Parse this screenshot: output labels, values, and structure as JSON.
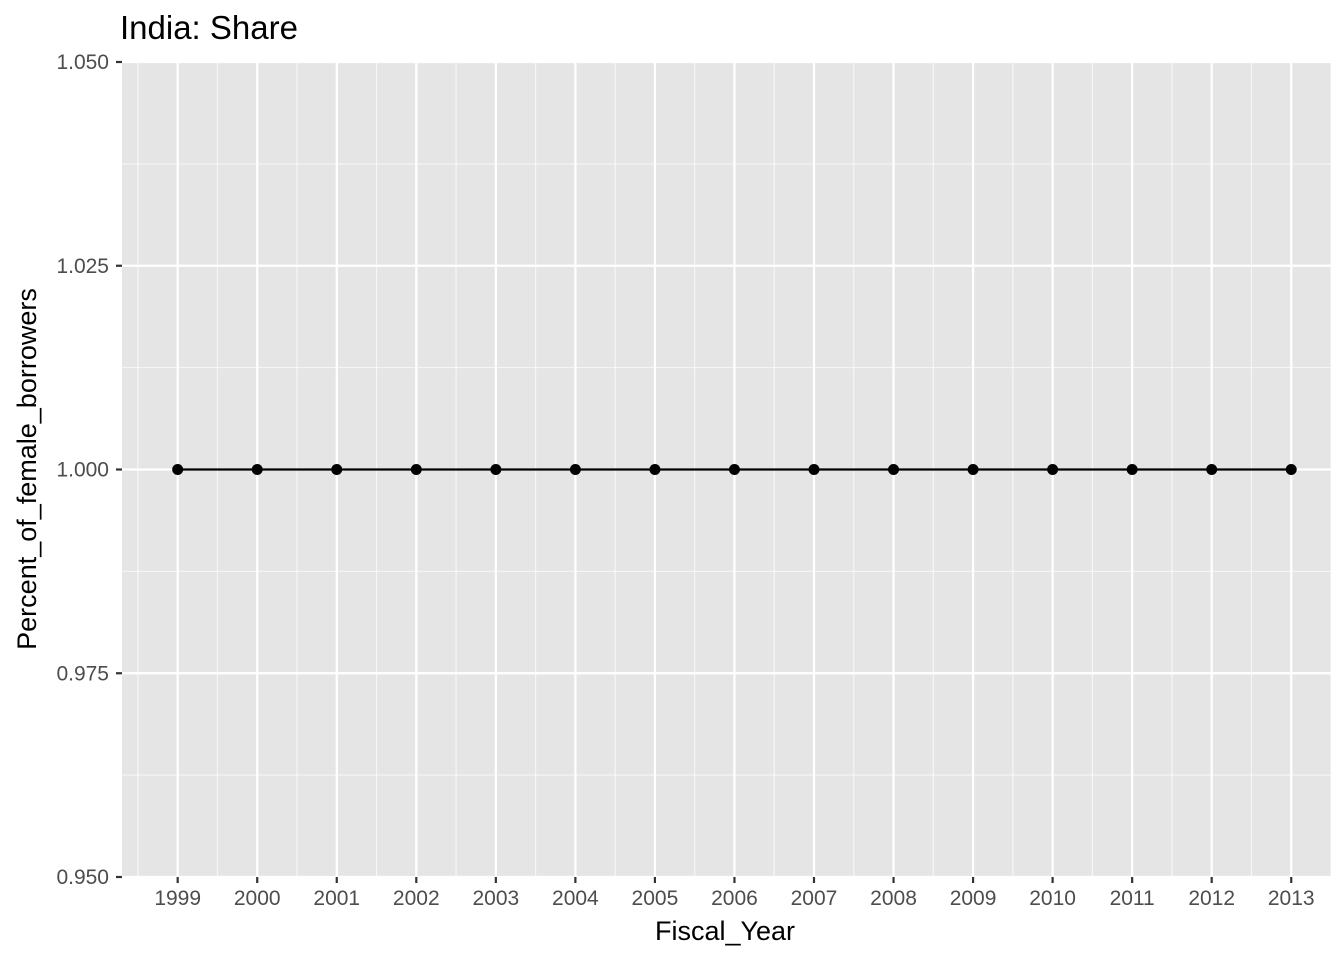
{
  "chart_data": {
    "type": "line",
    "title": "India:  Share",
    "xlabel": "Fiscal_Year",
    "ylabel": "Percent_of_female_borrowers",
    "x": [
      1999,
      2000,
      2001,
      2002,
      2003,
      2004,
      2005,
      2006,
      2007,
      2008,
      2009,
      2010,
      2011,
      2012,
      2013
    ],
    "y": [
      1,
      1,
      1,
      1,
      1,
      1,
      1,
      1,
      1,
      1,
      1,
      1,
      1,
      1,
      1
    ],
    "xlim": [
      1998.3,
      2013.5
    ],
    "ylim": [
      0.95,
      1.05
    ],
    "x_ticks": [
      "1999",
      "2000",
      "2001",
      "2002",
      "2003",
      "2004",
      "2005",
      "2006",
      "2007",
      "2008",
      "2009",
      "2010",
      "2011",
      "2012",
      "2013"
    ],
    "y_ticks": [
      "0.950",
      "0.975",
      "1.000",
      "1.025",
      "1.050"
    ],
    "y_tick_values": [
      0.95,
      0.975,
      1.0,
      1.025,
      1.05
    ],
    "grid": true,
    "legend": "none",
    "colors": {
      "panel": "#e5e5e5",
      "grid": "#ffffff",
      "line": "#000000",
      "point": "#000000",
      "tick_text": "#4d4d4d"
    }
  }
}
